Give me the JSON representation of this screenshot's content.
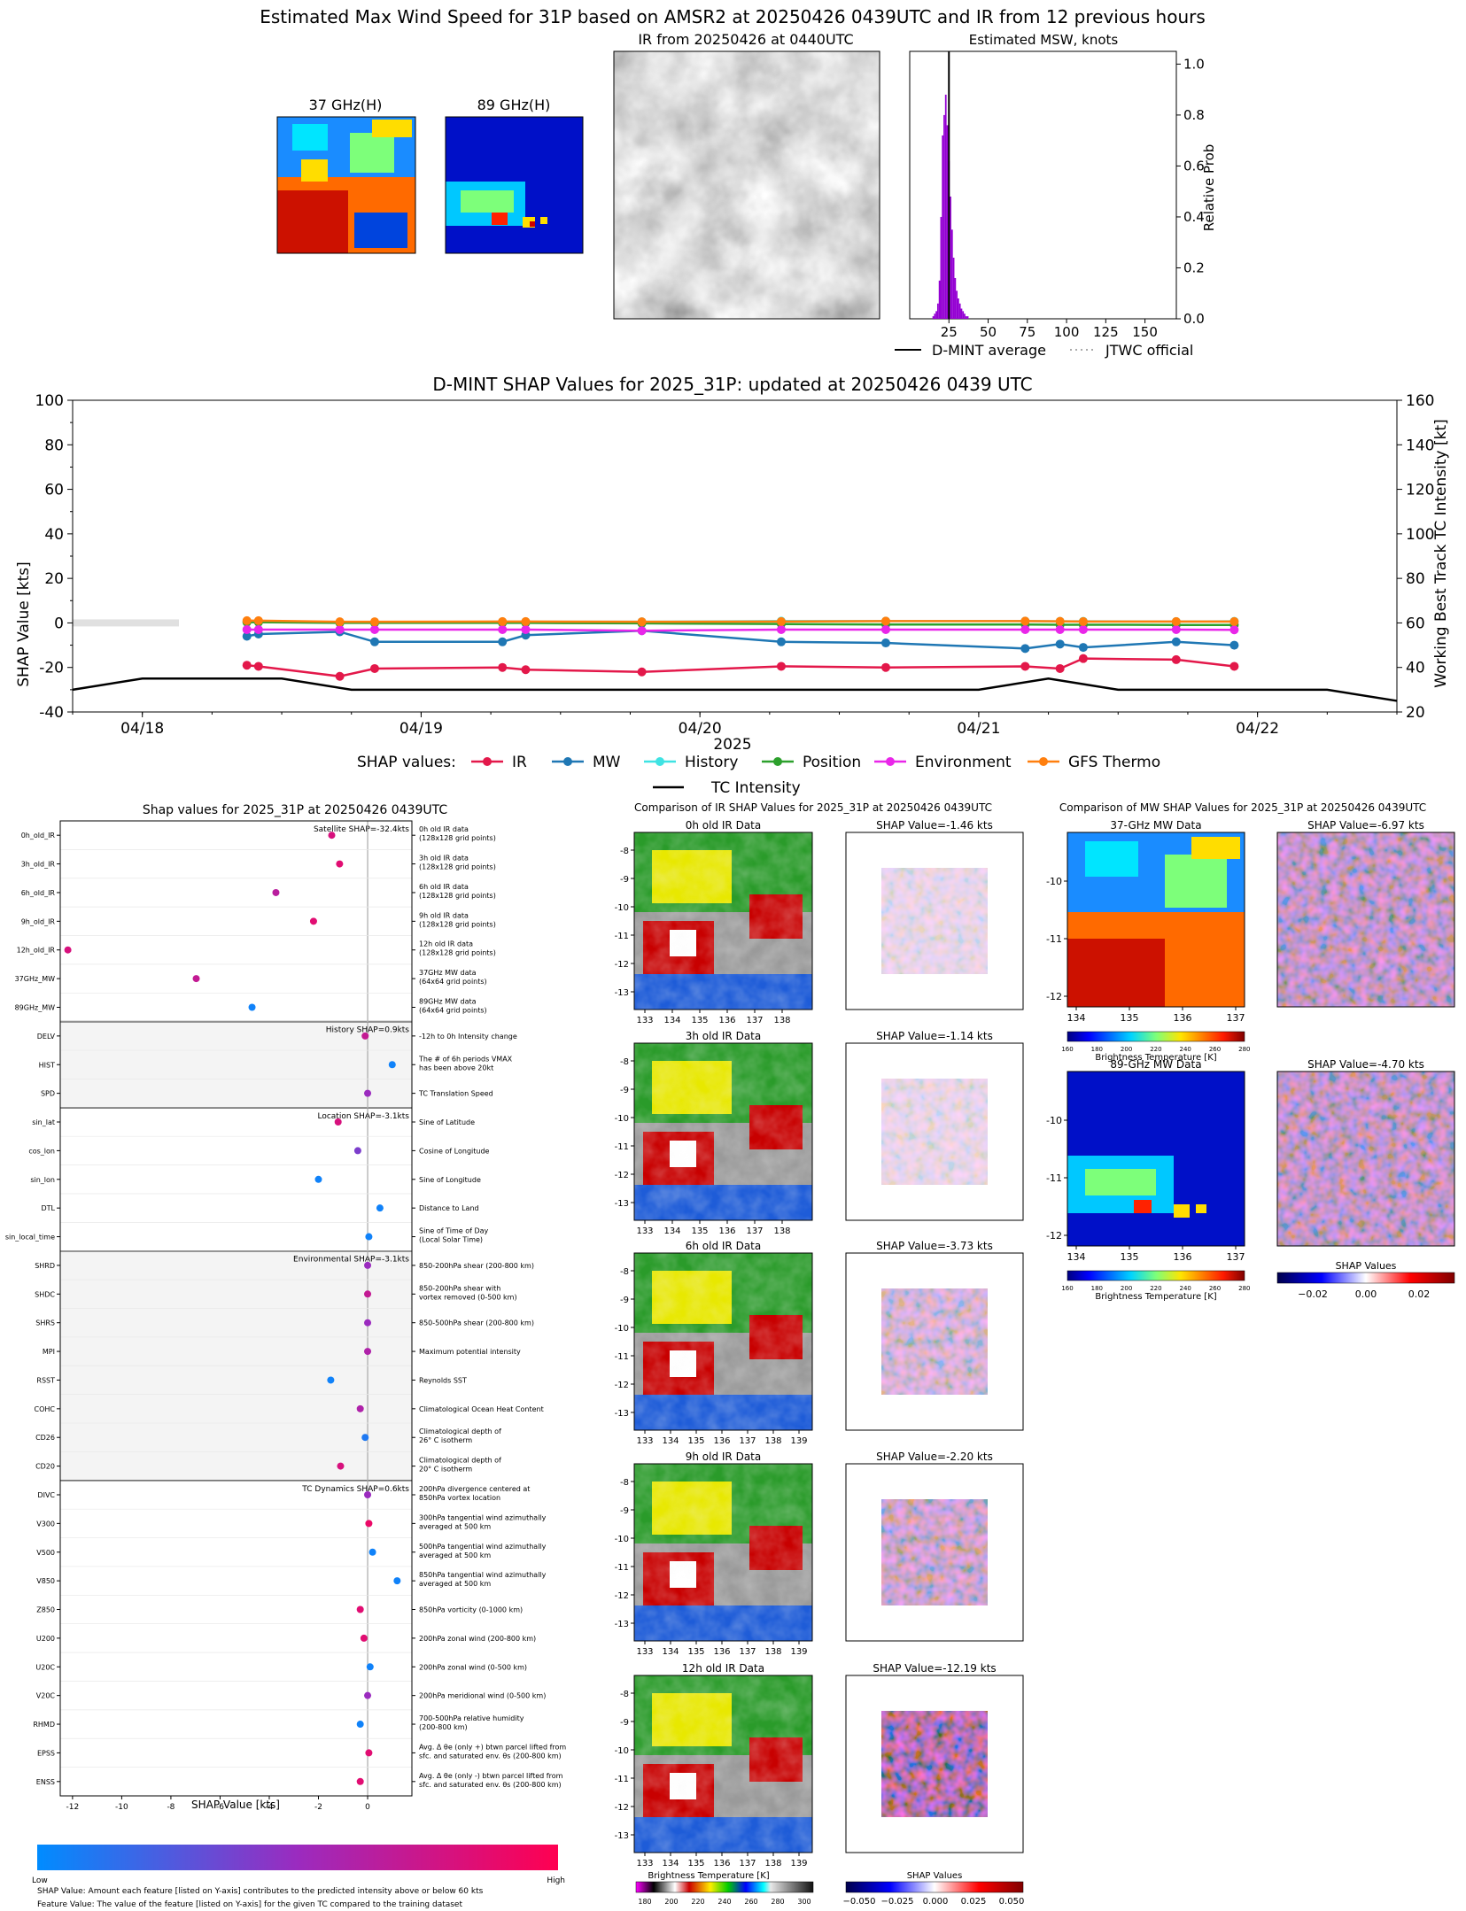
{
  "header": {
    "title": "Estimated Max Wind Speed for 31P based on AMSR2 at 20250426 0439UTC and IR from 12 previous hours",
    "mw37_title": "37 GHz(H)",
    "mw89_title": "89 GHz(H)",
    "ir_title": "IR from 20250426 at 0440UTC",
    "msw_title": "Estimated MSW, knots",
    "msw_ylabel": "Relative Prob",
    "legend_dmint": "D-MINT average",
    "legend_jtwc": "JTWC official"
  },
  "timeseries": {
    "title": "D-MINT SHAP Values for 2025_31P: updated at 20250426 0439 UTC",
    "ylabel": "SHAP Value [kts]",
    "y2label": "Working Best Track TC Intensity [kt]",
    "xlabel": "2025",
    "legend_prefix": "SHAP values:",
    "legend_tc": "TC Intensity"
  },
  "shap_panel": {
    "title": "Shap values for 2025_31P at 20250426 0439UTC",
    "xlabel": "SHAP Value [kts]",
    "colorbar_low": "Low",
    "colorbar_high": "High",
    "footnote1": "SHAP Value: Amount each feature [listed on Y-axis] contributes to the predicted intensity above or below 60 kts",
    "footnote2": "Feature Value: The value of the feature [listed on Y-axis] for the given TC compared to the training dataset"
  },
  "ir_panel": {
    "title": "Comparison of IR SHAP Values for 2025_31P at 20250426 0439UTC",
    "cbar_label": "Brightness Temperature [K]",
    "cbar2_label": "SHAP Values",
    "rows": [
      {
        "left": "0h old IR Data",
        "right": "SHAP Value=-1.46 kts"
      },
      {
        "left": "3h old IR Data",
        "right": "SHAP Value=-1.14 kts"
      },
      {
        "left": "6h old IR Data",
        "right": "SHAP Value=-3.73 kts"
      },
      {
        "left": "9h old IR Data",
        "right": "SHAP Value=-2.20 kts"
      },
      {
        "left": "12h old IR Data",
        "right": "SHAP Value=-12.19 kts"
      }
    ]
  },
  "mw_panel": {
    "title": "Comparison of MW SHAP Values for 2025_31P at 20250426 0439UTC",
    "cbar_label": "Brightness Temperature [K]",
    "cbar2_label": "SHAP Values",
    "rows": [
      {
        "left": "37-GHz MW Data",
        "right": "SHAP Value=-6.97 kts"
      },
      {
        "left": "89-GHz MW Data",
        "right": "SHAP Value=-4.70 kts"
      }
    ]
  },
  "chart_data": [
    {
      "type": "bar",
      "title": "Estimated MSW, knots",
      "ylabel": "Relative Prob",
      "xlim": [
        0,
        170
      ],
      "ylim": [
        0,
        1.05
      ],
      "xticks": [
        25,
        50,
        75,
        100,
        125,
        150
      ],
      "yticks": [
        0.0,
        0.2,
        0.4,
        0.6,
        0.8,
        1.0
      ],
      "bins": [
        15,
        16,
        17,
        18,
        19,
        20,
        21,
        22,
        23,
        24,
        25,
        26,
        27,
        28,
        29,
        30,
        31,
        32,
        33,
        34,
        35,
        36,
        37
      ],
      "values": [
        0.01,
        0.02,
        0.03,
        0.06,
        0.15,
        0.4,
        0.72,
        0.8,
        0.88,
        0.76,
        0.62,
        0.48,
        0.35,
        0.24,
        0.16,
        0.11,
        0.08,
        0.06,
        0.04,
        0.03,
        0.02,
        0.01,
        0.01
      ],
      "dmint_average": 25,
      "bar_color": "#9400d3"
    },
    {
      "type": "line",
      "title": "D-MINT SHAP Values for 2025_31P: updated at 20250426 0439 UTC",
      "xlabel": "2025",
      "ylabel": "SHAP Value [kts]",
      "y2label": "Working Best Track TC Intensity [kt]",
      "xlim": [
        "04/17 18:00",
        "04/22 12:00"
      ],
      "ylim": [
        -40,
        100
      ],
      "y2lim": [
        20,
        160
      ],
      "xticks": [
        "04/18",
        "04/19",
        "04/20",
        "04/21",
        "04/22"
      ],
      "yticks": [
        -40,
        -20,
        0,
        20,
        40,
        60,
        80,
        100
      ],
      "y2ticks": [
        20,
        40,
        60,
        80,
        100,
        120,
        140,
        160
      ],
      "x": [
        "04/18 09:00",
        "04/18 10:00",
        "04/18 17:00",
        "04/18 20:00",
        "04/19 07:00",
        "04/19 09:00",
        "04/19 19:00",
        "04/20 07:00",
        "04/20 16:00",
        "04/21 04:00",
        "04/21 07:00",
        "04/21 09:00",
        "04/21 17:00",
        "04/21 22:00"
      ],
      "series": [
        {
          "name": "IR",
          "color": "#e3184a",
          "values": [
            -19,
            -19.5,
            -24,
            -20.5,
            -20,
            -21,
            -22,
            -19.5,
            -20,
            -19.5,
            -20.5,
            -16,
            -16.5,
            -19.5
          ]
        },
        {
          "name": "MW",
          "color": "#1f77b4",
          "values": [
            -6,
            -5,
            -4,
            -8.5,
            -8.5,
            -5.5,
            -3.5,
            -8.5,
            -9,
            -11.5,
            -9.5,
            -11,
            -8.5,
            -10
          ]
        },
        {
          "name": "History",
          "color": "#3fe3e3",
          "values": [
            0.5,
            0.5,
            0.3,
            0.3,
            0.5,
            0.5,
            0.5,
            0.8,
            0.8,
            0.8,
            0.7,
            0.7,
            0.6,
            0.7
          ]
        },
        {
          "name": "Position",
          "color": "#2ca02c",
          "values": [
            0.3,
            0.3,
            0,
            0,
            0,
            0,
            -0.2,
            -0.5,
            -0.7,
            -0.7,
            -0.8,
            -0.8,
            -0.9,
            -0.9
          ]
        },
        {
          "name": "Environment",
          "color": "#e926e9",
          "values": [
            -3,
            -3,
            -3,
            -3,
            -3,
            -3,
            -3.5,
            -3,
            -3,
            -3,
            -3,
            -3,
            -3,
            -3.1
          ]
        },
        {
          "name": "GFS Thermo",
          "color": "#ff7f0e",
          "values": [
            1,
            1,
            0.5,
            0.5,
            0.6,
            0.6,
            0.5,
            0.6,
            0.8,
            0.8,
            0.7,
            0.6,
            0.6,
            0.6
          ]
        }
      ],
      "tc_intensity": {
        "name": "TC Intensity",
        "x": [
          "04/17 18:00",
          "04/18 00:00",
          "04/18 12:00",
          "04/18 18:00",
          "04/19 00:00",
          "04/20 00:00",
          "04/21 00:00",
          "04/21 06:00",
          "04/21 12:00",
          "04/22 00:00",
          "04/22 06:00",
          "04/22 12:00"
        ],
        "values": [
          30,
          35,
          35,
          30,
          30,
          30,
          30,
          35,
          30,
          30,
          30,
          25
        ]
      }
    },
    {
      "type": "scatter",
      "title": "Shap values for 2025_31P at 20250426 0439UTC",
      "xlabel": "SHAP Value [kts]",
      "xlim": [
        -12.5,
        1.8
      ],
      "xticks": [
        -12,
        -10,
        -8,
        -6,
        -4,
        -2,
        0
      ],
      "groups": [
        {
          "label": "Satellite SHAP=-32.4kts",
          "shaded": false,
          "features": [
            {
              "name": "0h_old_IR",
              "desc": [
                "0h old IR data",
                "(128x128 grid points)"
              ],
              "shap": -1.46,
              "fv": 0.8
            },
            {
              "name": "3h_old_IR",
              "desc": [
                "3h old IR data",
                "(128x128 grid points)"
              ],
              "shap": -1.14,
              "fv": 0.85
            },
            {
              "name": "6h_old_IR",
              "desc": [
                "6h old IR data",
                "(128x128 grid points)"
              ],
              "shap": -3.73,
              "fv": 0.65
            },
            {
              "name": "9h_old_IR",
              "desc": [
                "9h old IR data",
                "(128x128 grid points)"
              ],
              "shap": -2.2,
              "fv": 0.85
            },
            {
              "name": "12h_old_IR",
              "desc": [
                "12h old IR data",
                "(128x128 grid points)"
              ],
              "shap": -12.19,
              "fv": 0.8
            },
            {
              "name": "37GHz_MW",
              "desc": [
                "37GHz MW data",
                "(64x64 grid points)"
              ],
              "shap": -6.97,
              "fv": 0.7
            },
            {
              "name": "89GHz_MW",
              "desc": [
                "89GHz MW data",
                "(64x64 grid points)"
              ],
              "shap": -4.7,
              "fv": 0.05
            }
          ]
        },
        {
          "label": "History SHAP=0.9kts",
          "shaded": true,
          "features": [
            {
              "name": "DELV",
              "desc": [
                "-12h to 0h Intensity change"
              ],
              "shap": -0.1,
              "fv": 0.7
            },
            {
              "name": "HIST",
              "desc": [
                "The # of 6h periods VMAX",
                "has been above 20kt"
              ],
              "shap": 1.0,
              "fv": 0.05
            },
            {
              "name": "SPD",
              "desc": [
                "TC Translation Speed"
              ],
              "shap": 0.0,
              "fv": 0.5
            }
          ]
        },
        {
          "label": "Location SHAP=-3.1kts",
          "shaded": false,
          "features": [
            {
              "name": "sin_lat",
              "desc": [
                "Sine of Latitude"
              ],
              "shap": -1.2,
              "fv": 0.8
            },
            {
              "name": "cos_lon",
              "desc": [
                "Cosine of Longitude"
              ],
              "shap": -0.4,
              "fv": 0.4
            },
            {
              "name": "sin_lon",
              "desc": [
                "Sine of Longitude"
              ],
              "shap": -2.0,
              "fv": 0.05
            },
            {
              "name": "DTL",
              "desc": [
                "Distance to Land"
              ],
              "shap": 0.5,
              "fv": 0.05
            },
            {
              "name": "sin_local_time",
              "desc": [
                "Sine of Time of Day",
                "(Local Solar Time)"
              ],
              "shap": 0.05,
              "fv": 0.05
            }
          ]
        },
        {
          "label": "Environmental SHAP=-3.1kts",
          "shaded": true,
          "features": [
            {
              "name": "SHRD",
              "desc": [
                "850-200hPa shear (200-800 km)"
              ],
              "shap": 0.0,
              "fv": 0.5
            },
            {
              "name": "SHDC",
              "desc": [
                "850-200hPa shear with",
                "vortex removed (0-500 km)"
              ],
              "shap": 0.0,
              "fv": 0.7
            },
            {
              "name": "SHRS",
              "desc": [
                "850-500hPa shear (200-800 km)"
              ],
              "shap": 0.0,
              "fv": 0.5
            },
            {
              "name": "MPI",
              "desc": [
                "Maximum potential intensity"
              ],
              "shap": 0.0,
              "fv": 0.6
            },
            {
              "name": "RSST",
              "desc": [
                "Reynolds SST"
              ],
              "shap": -1.5,
              "fv": 0.05
            },
            {
              "name": "COHC",
              "desc": [
                "Climatological Ocean Heat Content"
              ],
              "shap": -0.3,
              "fv": 0.6
            },
            {
              "name": "CD26",
              "desc": [
                "Climatological depth of",
                "26° C isotherm"
              ],
              "shap": -0.1,
              "fv": 0.1
            },
            {
              "name": "CD20",
              "desc": [
                "Climatological depth of",
                "20° C isotherm"
              ],
              "shap": -1.1,
              "fv": 0.8
            }
          ]
        },
        {
          "label": "TC Dynamics SHAP=0.6kts",
          "shaded": false,
          "features": [
            {
              "name": "DIVC",
              "desc": [
                "200hPa divergence centered at",
                "850hPa vortex location"
              ],
              "shap": 0.0,
              "fv": 0.5
            },
            {
              "name": "V300",
              "desc": [
                "300hPa tangential wind azimuthally",
                "averaged at 500 km"
              ],
              "shap": 0.05,
              "fv": 0.9
            },
            {
              "name": "V500",
              "desc": [
                "500hPa tangential wind azimuthally",
                "averaged at 500 km"
              ],
              "shap": 0.2,
              "fv": 0.05
            },
            {
              "name": "V850",
              "desc": [
                "850hPa tangential wind azimuthally",
                "averaged at 500 km"
              ],
              "shap": 1.2,
              "fv": 0.05
            },
            {
              "name": "Z850",
              "desc": [
                "850hPa vorticity (0-1000 km)"
              ],
              "shap": -0.3,
              "fv": 0.85
            },
            {
              "name": "U200",
              "desc": [
                "200hPa zonal wind (200-800 km)"
              ],
              "shap": -0.15,
              "fv": 0.85
            },
            {
              "name": "U20C",
              "desc": [
                "200hPa zonal wind (0-500 km)"
              ],
              "shap": 0.1,
              "fv": 0.05
            },
            {
              "name": "V20C",
              "desc": [
                "200hPa meridional wind (0-500 km)"
              ],
              "shap": 0.0,
              "fv": 0.5
            },
            {
              "name": "RHMD",
              "desc": [
                "700-500hPa relative humidity",
                "(200-800 km)"
              ],
              "shap": -0.3,
              "fv": 0.05
            },
            {
              "name": "EPSS",
              "desc": [
                "Avg. Δ θe (only +) btwn parcel lifted from",
                "sfc. and saturated env. θs (200-800 km)"
              ],
              "shap": 0.05,
              "fv": 0.85
            },
            {
              "name": "ENSS",
              "desc": [
                "Avg. Δ θe (only -) btwn parcel lifted from",
                "sfc. and saturated env. θs (200-800 km)"
              ],
              "shap": -0.3,
              "fv": 0.85
            }
          ]
        }
      ]
    }
  ],
  "axes_text": {
    "msw_xticks": [
      "25",
      "50",
      "75",
      "100",
      "125",
      "150"
    ],
    "msw_yticks": [
      "0.0",
      "0.2",
      "0.4",
      "0.6",
      "0.8",
      "1.0"
    ],
    "ir_lat_ticks": [
      "-8",
      "-9",
      "-10",
      "-11",
      "-12",
      "-13"
    ],
    "ir_lon_ticks_a": [
      "133",
      "134",
      "135",
      "136",
      "137",
      "138"
    ],
    "ir_lon_ticks_b": [
      "133",
      "134",
      "135",
      "136",
      "137",
      "138",
      "139"
    ],
    "mw_lat_ticks": [
      "-10",
      "-11",
      "-12"
    ],
    "mw_lon_ticks": [
      "134",
      "135",
      "136",
      "137"
    ],
    "bt_cbar_ticks_ir": [
      "180",
      "200",
      "220",
      "240",
      "260",
      "280",
      "300"
    ],
    "bt_cbar_ticks_mw": [
      "160",
      "180",
      "200",
      "220",
      "240",
      "260",
      "280"
    ],
    "shap_cbar_ticks_ir": [
      "−0.050",
      "−0.025",
      "0.000",
      "0.025",
      "0.050"
    ],
    "shap_cbar_ticks_mw": [
      "−0.02",
      "0.00",
      "0.02"
    ]
  }
}
